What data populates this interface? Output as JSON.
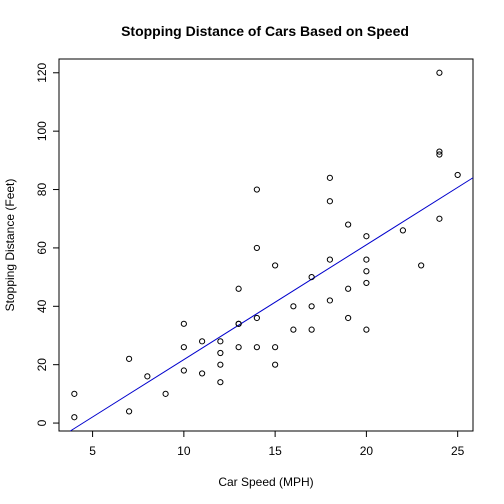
{
  "chart_data": {
    "type": "scatter",
    "title": "Stopping Distance of Cars Based on Speed",
    "xlabel": "Car Speed (MPH)",
    "ylabel": "Stopping Distance (Feet)",
    "xlim": [
      3.16,
      25.84
    ],
    "ylim": [
      -2.72,
      124.72
    ],
    "xticks": [
      5,
      10,
      15,
      20,
      25
    ],
    "yticks": [
      0,
      20,
      40,
      60,
      80,
      100,
      120
    ],
    "grid": false,
    "legend": "none",
    "point_color": "#000000",
    "line_color": "#0000cc",
    "regression_line": {
      "type": "linear-fit",
      "slope": 3.9324,
      "intercept": -17.5791
    },
    "points": [
      {
        "x": 4,
        "y": 2
      },
      {
        "x": 4,
        "y": 10
      },
      {
        "x": 7,
        "y": 4
      },
      {
        "x": 7,
        "y": 22
      },
      {
        "x": 8,
        "y": 16
      },
      {
        "x": 9,
        "y": 10
      },
      {
        "x": 10,
        "y": 18
      },
      {
        "x": 10,
        "y": 26
      },
      {
        "x": 10,
        "y": 34
      },
      {
        "x": 11,
        "y": 17
      },
      {
        "x": 11,
        "y": 28
      },
      {
        "x": 12,
        "y": 14
      },
      {
        "x": 12,
        "y": 20
      },
      {
        "x": 12,
        "y": 24
      },
      {
        "x": 12,
        "y": 28
      },
      {
        "x": 13,
        "y": 26
      },
      {
        "x": 13,
        "y": 34
      },
      {
        "x": 13,
        "y": 34
      },
      {
        "x": 13,
        "y": 46
      },
      {
        "x": 14,
        "y": 26
      },
      {
        "x": 14,
        "y": 36
      },
      {
        "x": 14,
        "y": 60
      },
      {
        "x": 14,
        "y": 80
      },
      {
        "x": 15,
        "y": 20
      },
      {
        "x": 15,
        "y": 26
      },
      {
        "x": 15,
        "y": 54
      },
      {
        "x": 16,
        "y": 32
      },
      {
        "x": 16,
        "y": 40
      },
      {
        "x": 17,
        "y": 32
      },
      {
        "x": 17,
        "y": 40
      },
      {
        "x": 17,
        "y": 50
      },
      {
        "x": 18,
        "y": 42
      },
      {
        "x": 18,
        "y": 56
      },
      {
        "x": 18,
        "y": 76
      },
      {
        "x": 18,
        "y": 84
      },
      {
        "x": 19,
        "y": 36
      },
      {
        "x": 19,
        "y": 46
      },
      {
        "x": 19,
        "y": 68
      },
      {
        "x": 20,
        "y": 32
      },
      {
        "x": 20,
        "y": 48
      },
      {
        "x": 20,
        "y": 52
      },
      {
        "x": 20,
        "y": 56
      },
      {
        "x": 20,
        "y": 64
      },
      {
        "x": 22,
        "y": 66
      },
      {
        "x": 23,
        "y": 54
      },
      {
        "x": 24,
        "y": 70
      },
      {
        "x": 24,
        "y": 92
      },
      {
        "x": 24,
        "y": 93
      },
      {
        "x": 24,
        "y": 120
      },
      {
        "x": 25,
        "y": 85
      }
    ]
  }
}
